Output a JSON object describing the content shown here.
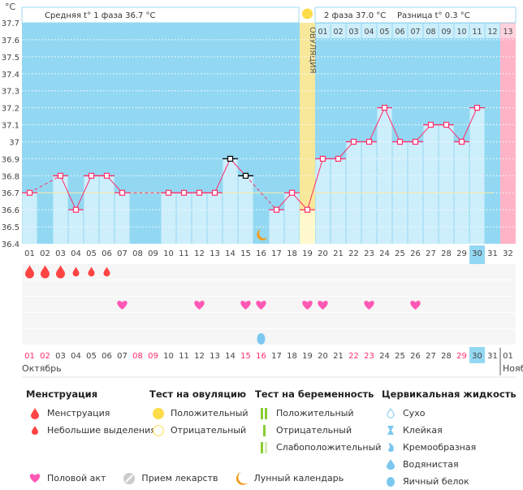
{
  "chart_data": {
    "type": "line",
    "y_unit": "°C",
    "ylim": [
      36.4,
      37.7
    ],
    "yticks": [
      "36.4",
      "36.5",
      "36.6",
      "36.7",
      "36.8",
      "36.9",
      "37",
      "37.1",
      "37.2",
      "37.3",
      "37.4",
      "37.5",
      "37.6",
      "37.7"
    ],
    "cycle_days": [
      "01",
      "02",
      "03",
      "04",
      "05",
      "06",
      "07",
      "08",
      "09",
      "10",
      "11",
      "12",
      "13",
      "14",
      "15",
      "16",
      "17",
      "18",
      "19",
      "20",
      "21",
      "22",
      "23",
      "24",
      "25",
      "26",
      "27",
      "28",
      "29",
      "30",
      "31",
      "32"
    ],
    "temperatures": [
      36.7,
      null,
      36.8,
      36.6,
      36.8,
      36.8,
      36.7,
      null,
      null,
      36.7,
      36.7,
      36.7,
      36.7,
      36.9,
      36.8,
      null,
      36.6,
      36.7,
      36.6,
      36.9,
      36.9,
      37.0,
      37.0,
      37.2,
      37.0,
      37.0,
      37.1,
      37.1,
      37.0,
      37.2,
      null,
      null
    ],
    "excluded_days": [
      14,
      15
    ],
    "cover_line": 36.7,
    "ovulation_day": 19,
    "ovulation_label": "ОВУЛЯЦИЯ",
    "current_day": 30,
    "expected_period_day": 32,
    "phase1_text": "Средняя t° 1 фаза 36.7 °C",
    "phase2_text": "2 фаза 37.0 °C",
    "diff_text": "Разница t° 0.3 °C",
    "phase2_days": [
      "01",
      "02",
      "03",
      "04",
      "05",
      "06",
      "07",
      "08",
      "09",
      "10",
      "11",
      "12",
      "13"
    ],
    "moon_day": 16,
    "menstruation": {
      "heavy": [
        1,
        2,
        3
      ],
      "light": [
        4,
        5,
        6
      ]
    },
    "intercourse_days": [
      7,
      12,
      15,
      16,
      19,
      20,
      23,
      26
    ],
    "cervical_fluid": [
      {
        "day": 16,
        "type": "Яичный белок"
      }
    ],
    "dates": [
      "01",
      "02",
      "03",
      "04",
      "05",
      "06",
      "07",
      "08",
      "09",
      "10",
      "11",
      "12",
      "13",
      "14",
      "15",
      "16",
      "17",
      "18",
      "19",
      "20",
      "21",
      "22",
      "23",
      "24",
      "25",
      "26",
      "27",
      "28",
      "29",
      "30",
      "31",
      "01"
    ],
    "weekend_days": [
      1,
      2,
      8,
      9,
      15,
      16,
      22,
      23,
      29
    ],
    "month": "Октябрь",
    "next_month": "Нояб",
    "colors": {
      "bg": "#93d8f2",
      "bar": "#cdeefb",
      "line": "#ff2d6a",
      "ovulation": "#f7e89a",
      "period": "#ffb3c6",
      "cover": "#f5eaa0",
      "weekend": "#ff2d6a"
    }
  },
  "legend": {
    "menstruation": {
      "title": "Менструация",
      "items": [
        "Менструация",
        "Небольшие выделения"
      ]
    },
    "ovulation_test": {
      "title": "Тест на овуляцию",
      "items": [
        "Положительный",
        "Отрицательный"
      ]
    },
    "pregnancy_test": {
      "title": "Тест на беременность",
      "items": [
        "Положительный",
        "Отрицательный",
        "Слабоположительный"
      ]
    },
    "cervical": {
      "title": "Цервикальная жидкость",
      "items": [
        "Сухо",
        "Клейкая",
        "Кремообразная",
        "Водянистая",
        "Яичный белок"
      ]
    },
    "bottom": [
      "Половой акт",
      "Прием лекарств",
      "Лунный календарь"
    ]
  }
}
